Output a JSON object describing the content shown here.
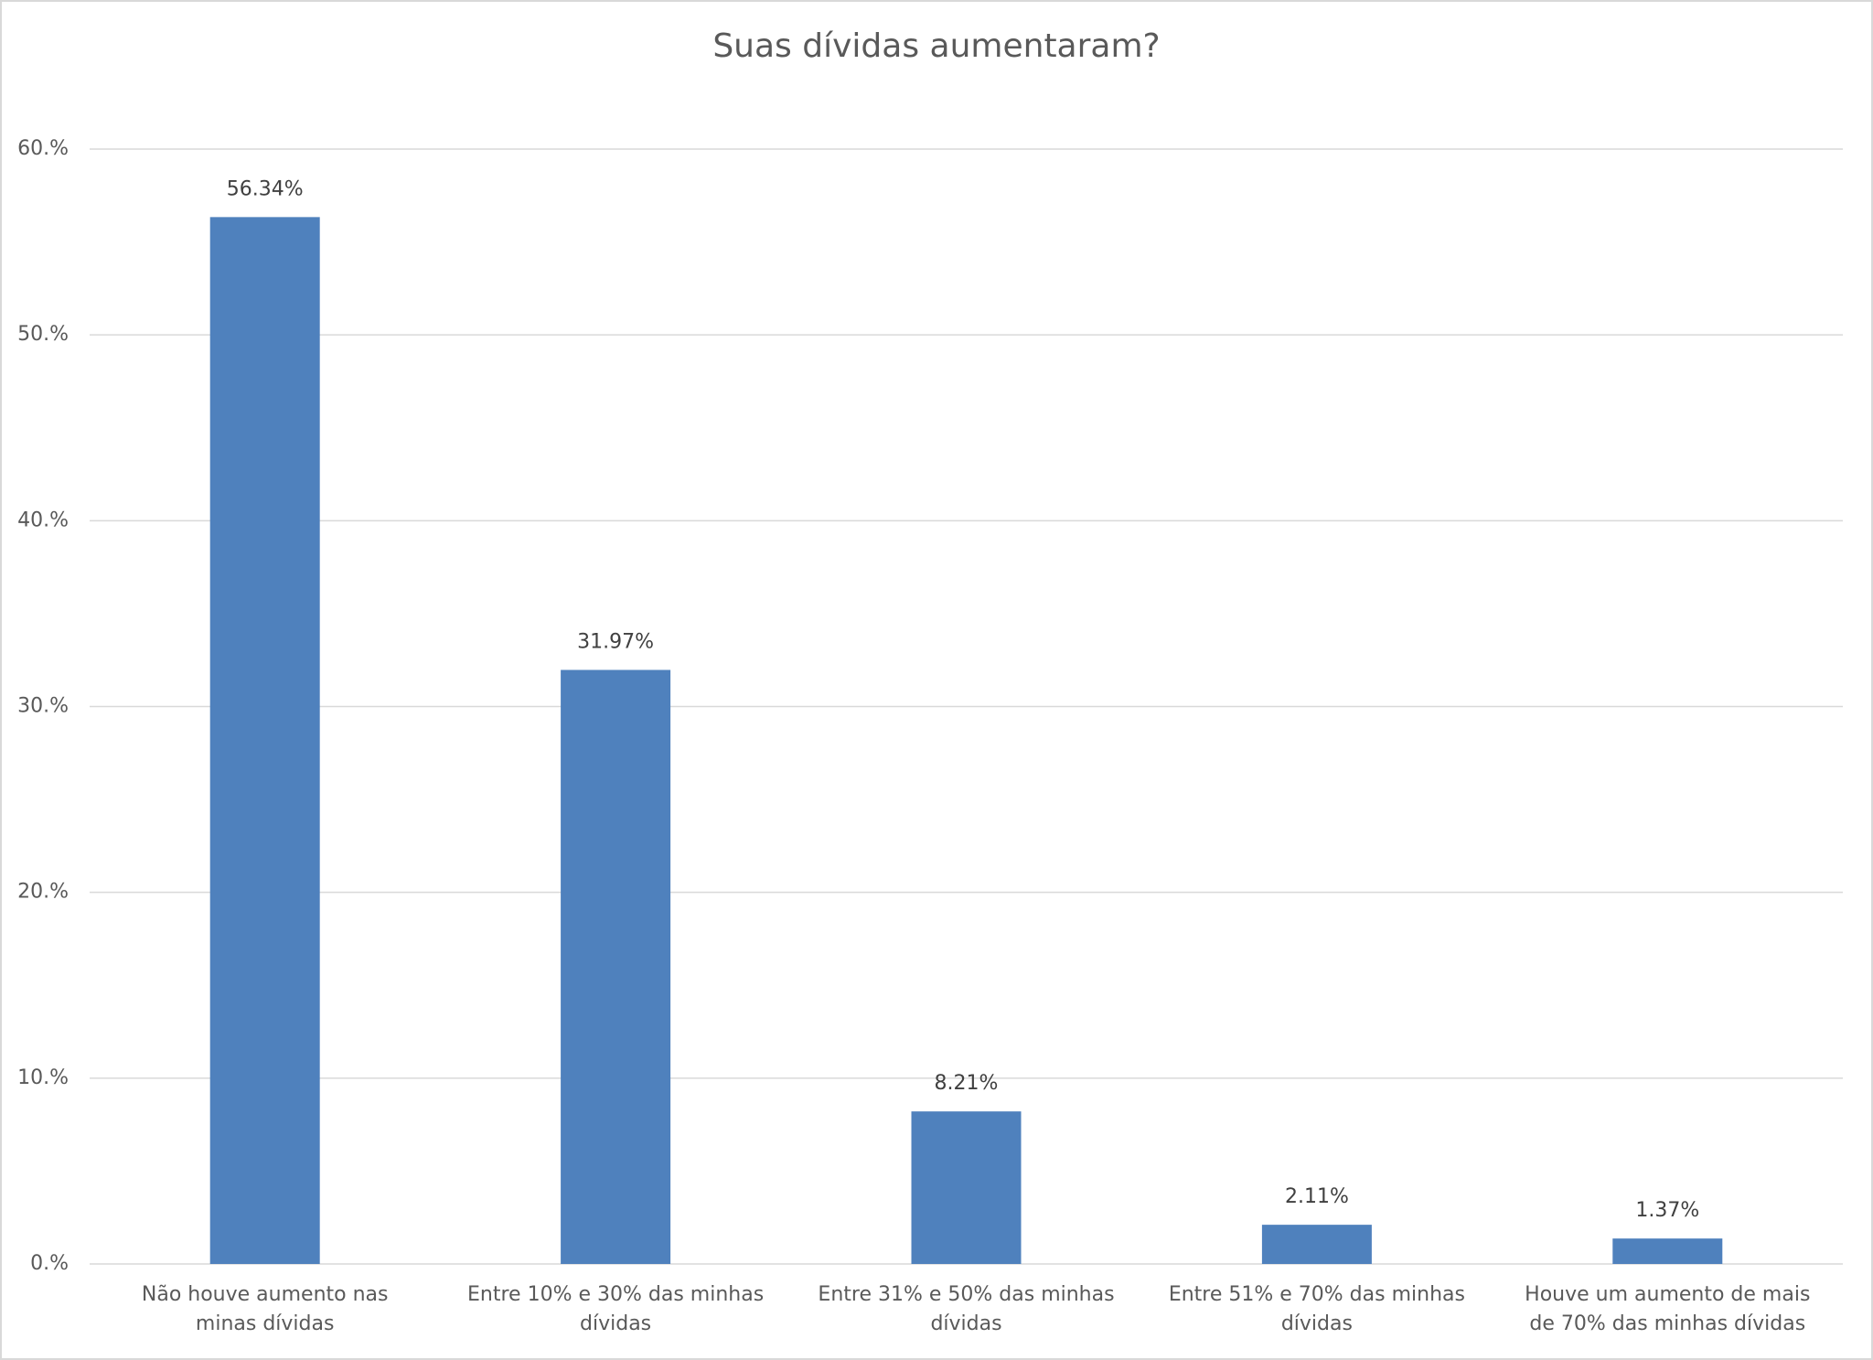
{
  "chart_data": {
    "type": "bar",
    "title": "Suas dívidas aumentaram?",
    "categories": [
      "Não houve aumento nas minas dívidas",
      "Entre 10% e 30% das minhas dívidas",
      "Entre 31% e 50% das minhas dívidas",
      "Entre 51% e 70% das minhas dívidas",
      "Houve um aumento de mais de 70% das minhas dívidas"
    ],
    "values": [
      56.34,
      31.97,
      8.21,
      2.11,
      1.37
    ],
    "value_labels": [
      "56.34%",
      "31.97%",
      "8.21%",
      "2.11%",
      "1.37%"
    ],
    "color": "#4f81bd",
    "ylim": [
      0,
      60
    ],
    "yticks": [
      {
        "value": 0,
        "label": "0.%"
      },
      {
        "value": 10,
        "label": "10.%"
      },
      {
        "value": 20,
        "label": "20.%"
      },
      {
        "value": 30,
        "label": "30.%"
      },
      {
        "value": 40,
        "label": "40.%"
      },
      {
        "value": 50,
        "label": "50.%"
      },
      {
        "value": 60,
        "label": "60.%"
      }
    ],
    "grid": true
  }
}
